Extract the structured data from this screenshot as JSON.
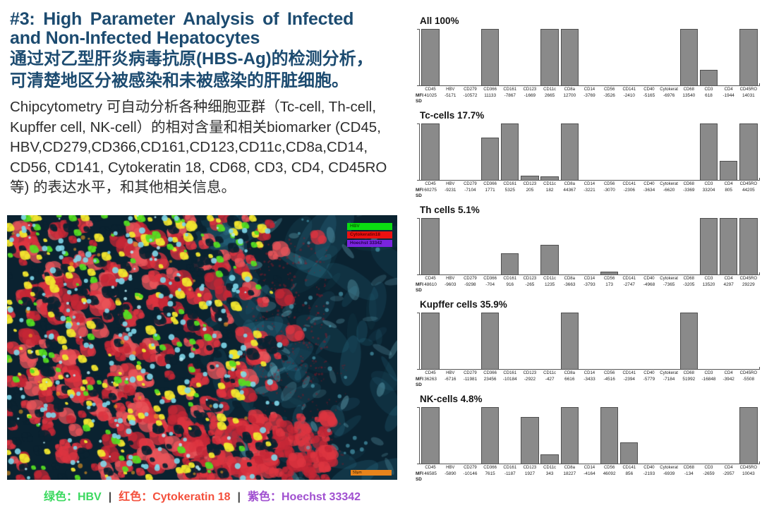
{
  "header": {
    "title_line1": "#3: High Parameter Analysis of Infected",
    "title_line2": "and Non-Infected Hepatocytes",
    "subtitle_line1": "通过对乙型肝炎病毒抗原(HBS-Ag)的检测分析，",
    "subtitle_line2": "可清楚地区分被感染和未被感染的肝脏细胞。"
  },
  "body_text": "Chipcytometry 可自动分析各种细胞亚群（Tc-cell, Th-cell, Kupffer cell, NK-cell）的相对含量和相关biomarker (CD45, HBV,CD279,CD366,CD161,CD123,CD11c,CD8a,CD14, CD56, CD141, Cytokeratin 18, CD68, CD3, CD4, CD45RO等) 的表达水平，和其他相关信息。",
  "micrograph": {
    "legend": [
      {
        "label": "HBV",
        "bg": "#0bdd12",
        "text_color": "#0b6a00"
      },
      {
        "label": "Cytokeratin18",
        "bg": "#ee1111",
        "text_color": "#660000"
      },
      {
        "label": "Hoechst 33342",
        "bg": "#7b24e0",
        "text_color": "#23004d"
      }
    ],
    "scale_bar_label": "50µm",
    "scale_bar_color": "#e8841c"
  },
  "caption": {
    "parts": [
      {
        "text": "绿色：HBV",
        "color": "#3bd95f"
      },
      {
        "text": "|",
        "color": "#444444"
      },
      {
        "text": "红色：Cytokeratin 18",
        "color": "#f4503c"
      },
      {
        "text": "|",
        "color": "#444444"
      },
      {
        "text": "紫色：Hoechst 33342",
        "color": "#a04fd0"
      }
    ]
  },
  "chart_style": {
    "bar_color": "#8a8a8a",
    "bar_border": "#4f4f4f",
    "row_labels": [
      "MFI",
      "SD"
    ]
  },
  "chart_data": [
    {
      "type": "bar",
      "title": "All 100%",
      "categories": [
        "CD45",
        "HBV",
        "CD279",
        "CD366",
        "CD161",
        "CD123",
        "CD11c",
        "CD8a",
        "CD14",
        "CD56",
        "CD141",
        "CD40",
        "Cytokerat",
        "CD68",
        "CD3",
        "CD4",
        "CD45RO"
      ],
      "mfi": [
        41025,
        -5171,
        -10572,
        11133,
        -7867,
        -1669,
        2665,
        12700,
        -3769,
        -3526,
        -2410,
        -5165,
        -6976,
        13540,
        618,
        -1944,
        14031
      ],
      "bar_heights": [
        1,
        0,
        0,
        1,
        0,
        0,
        1,
        1,
        0,
        0,
        0,
        0,
        0,
        1,
        0.27,
        0,
        1
      ],
      "ylim": [
        0,
        1
      ],
      "grid": false,
      "legend": "none"
    },
    {
      "type": "bar",
      "title": "Tc-cells 17.7%",
      "categories": [
        "CD45",
        "HBV",
        "CD279",
        "CD366",
        "CD161",
        "CD123",
        "CD11c",
        "CD8a",
        "CD14",
        "CD56",
        "CD141",
        "CD40",
        "Cytokerat",
        "CD68",
        "CD3",
        "CD4",
        "CD45RO"
      ],
      "mfi": [
        60275,
        -9231,
        -7104,
        1771,
        5325,
        205,
        182,
        44367,
        -3221,
        -3070,
        -2306,
        -3634,
        -6620,
        -3369,
        33204,
        805,
        44205
      ],
      "bar_heights": [
        1,
        0,
        0,
        0.75,
        1,
        0.08,
        0.06,
        1,
        0,
        0,
        0,
        0,
        0,
        0,
        1,
        0.34,
        1
      ],
      "ylim": [
        0,
        1
      ],
      "grid": false,
      "legend": "none"
    },
    {
      "type": "bar",
      "title": "Th cells 5.1%",
      "categories": [
        "CD45",
        "HBV",
        "CD279",
        "CD366",
        "CD161",
        "CD123",
        "CD11c",
        "CD8a",
        "CD14",
        "CD56",
        "CD141",
        "CD40",
        "Cytokerat",
        "CD68",
        "CD3",
        "CD4",
        "CD45RO"
      ],
      "mfi": [
        48610,
        -9603,
        -9298,
        -704,
        916,
        -265,
        1235,
        -3663,
        -3793,
        173,
        -2747,
        -4968,
        -7365,
        -3205,
        13520,
        4297,
        29229
      ],
      "bar_heights": [
        1,
        0,
        0,
        0,
        0.38,
        0,
        0.52,
        0,
        0,
        0.05,
        0,
        0,
        0,
        0,
        1,
        1,
        1
      ],
      "ylim": [
        0,
        1
      ],
      "grid": false,
      "legend": "none"
    },
    {
      "type": "bar",
      "title": "Kupffer cells 35.9%",
      "categories": [
        "CD45",
        "HBV",
        "CD279",
        "CD366",
        "CD161",
        "CD123",
        "CD11c",
        "CD8a",
        "CD14",
        "CD56",
        "CD141",
        "CD40",
        "Cytokerat",
        "CD68",
        "CD3",
        "CD4",
        "CD45RO"
      ],
      "mfi": [
        36263,
        -6716,
        -11981,
        23456,
        -10184,
        -2922,
        -427,
        6616,
        -3433,
        -4516,
        -2394,
        -5779,
        -7184,
        51992,
        -16848,
        -3942,
        -5508
      ],
      "bar_heights": [
        1,
        0,
        0,
        1,
        0,
        0,
        0,
        1,
        0,
        0,
        0,
        0,
        0,
        1,
        0,
        0,
        0
      ],
      "ylim": [
        0,
        1
      ],
      "grid": false,
      "legend": "none"
    },
    {
      "type": "bar",
      "title": "NK-cells 4.8%",
      "categories": [
        "CD45",
        "HBV",
        "CD279",
        "CD366",
        "CD161",
        "CD123",
        "CD11c",
        "CD8a",
        "CD14",
        "CD56",
        "CD141",
        "CD40",
        "Cytokerat",
        "CD68",
        "CD3",
        "CD4",
        "CD45RO"
      ],
      "mfi": [
        46585,
        -5890,
        -10146,
        7615,
        -1187,
        1927,
        343,
        18227,
        -4164,
        46092,
        856,
        -2193,
        -6939,
        -134,
        -2659,
        -2957,
        10043
      ],
      "bar_heights": [
        1,
        0,
        0,
        1,
        0,
        0.83,
        0.16,
        1,
        0,
        1,
        0.37,
        0,
        0,
        0,
        0,
        0,
        1
      ],
      "ylim": [
        0,
        1
      ],
      "grid": false,
      "legend": "none"
    }
  ]
}
